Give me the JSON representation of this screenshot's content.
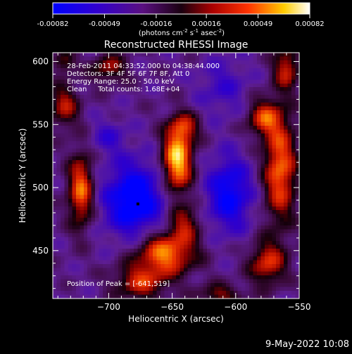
{
  "colorbar": {
    "tick_labels": [
      "-0.00082",
      "-0.00049",
      "-0.00016",
      "0.00016",
      "0.00049",
      "0.00082"
    ],
    "tick_values": [
      -0.00082,
      -0.00049,
      -0.00016,
      0.00016,
      0.00049,
      0.00082
    ],
    "unit_prefix": "(photons cm",
    "unit_exp1": "-2",
    "unit_mid": " s",
    "unit_exp2": "-1",
    "unit_mid2": " asec",
    "unit_exp3": "-2",
    "unit_suffix": ")"
  },
  "footer": {
    "date_stamp": "9-May-2022 10:08"
  },
  "colors": {
    "min": "#0000ff",
    "low": "#5500aa",
    "mid_low": "#200010",
    "mid": "#990000",
    "mid_high": "#ff3300",
    "high": "#ffcc00",
    "max": "#ffffff"
  },
  "chart_data": {
    "type": "heatmap",
    "title": "Reconstructed RHESSI Image",
    "xlabel": "Heliocentric X (arcsec)",
    "ylabel": "Heliocentric Y (arcsec)",
    "xlim": [
      -744,
      -550
    ],
    "ylim": [
      412,
      607
    ],
    "x_ticks": [
      -700,
      -650,
      -600,
      -550
    ],
    "y_ticks": [
      450,
      500,
      550,
      600
    ],
    "x_tick_labels": [
      "−700",
      "−650",
      "−600",
      "−550"
    ],
    "y_tick_labels": [
      "450",
      "500",
      "550",
      "600"
    ],
    "annotations": [
      "28-Feb-2011 04:33:52.000 to 04:38:44.000",
      "Detectors: 3F 4F 5F 6F 7F 8F, Att 0",
      "Energy Range: 25.0 - 50.0 keV",
      "Clean     Total counts: 1.68E+04"
    ],
    "peak_label": "Position of Peak = [-641,519]",
    "peak": [
      -641,
      519
    ],
    "marker": [
      -677,
      487
    ],
    "blobs": [
      {
        "x": -646,
        "y": 522,
        "sx": 8,
        "sy": 18,
        "amp": 1.0
      },
      {
        "x": -640,
        "y": 548,
        "sx": 8,
        "sy": 8,
        "amp": 0.45
      },
      {
        "x": -655,
        "y": 448,
        "sx": 16,
        "sy": 12,
        "amp": 0.8
      },
      {
        "x": -640,
        "y": 472,
        "sx": 8,
        "sy": 10,
        "amp": 0.45
      },
      {
        "x": -675,
        "y": 425,
        "sx": 14,
        "sy": 10,
        "amp": 0.55
      },
      {
        "x": -722,
        "y": 498,
        "sx": 7,
        "sy": 20,
        "amp": 0.75
      },
      {
        "x": -735,
        "y": 565,
        "sx": 8,
        "sy": 12,
        "amp": 0.5
      },
      {
        "x": -565,
        "y": 515,
        "sx": 9,
        "sy": 30,
        "amp": 0.75
      },
      {
        "x": -578,
        "y": 555,
        "sx": 9,
        "sy": 10,
        "amp": 0.6
      },
      {
        "x": -560,
        "y": 595,
        "sx": 7,
        "sy": 12,
        "amp": 0.55
      },
      {
        "x": -575,
        "y": 440,
        "sx": 10,
        "sy": 12,
        "amp": 0.6
      },
      {
        "x": -700,
        "y": 595,
        "sx": 10,
        "sy": 8,
        "amp": 0.45
      },
      {
        "x": -735,
        "y": 600,
        "sx": 6,
        "sy": 6,
        "amp": 0.4
      },
      {
        "x": -612,
        "y": 415,
        "sx": 12,
        "sy": 6,
        "amp": 0.4
      },
      {
        "x": -680,
        "y": 490,
        "sx": 16,
        "sy": 20,
        "amp": -0.75
      },
      {
        "x": -605,
        "y": 495,
        "sx": 12,
        "sy": 20,
        "amp": -0.6
      },
      {
        "x": -700,
        "y": 540,
        "sx": 10,
        "sy": 10,
        "amp": -0.25
      },
      {
        "x": -610,
        "y": 580,
        "sx": 14,
        "sy": 16,
        "amp": -0.25
      }
    ]
  }
}
